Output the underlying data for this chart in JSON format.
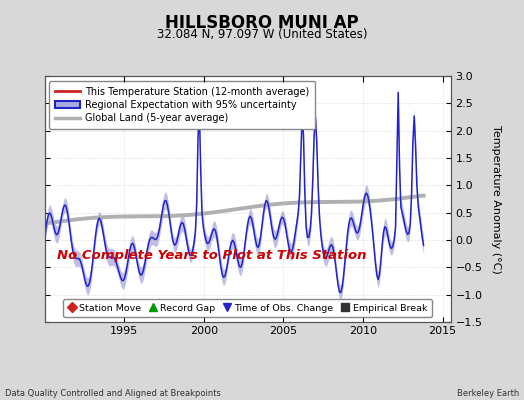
{
  "title": "HILLSBORO MUNI AP",
  "subtitle": "32.084 N, 97.097 W (United States)",
  "ylabel": "Temperature Anomaly (°C)",
  "xlabel_bottom_left": "Data Quality Controlled and Aligned at Breakpoints",
  "xlabel_bottom_right": "Berkeley Earth",
  "annotation": "No Complete Years to Plot at This Station",
  "ylim": [
    -1.5,
    3.0
  ],
  "xlim": [
    1990.0,
    2015.5
  ],
  "xticks": [
    1995,
    2000,
    2005,
    2010,
    2015
  ],
  "yticks": [
    -1.5,
    -1.0,
    -0.5,
    0.0,
    0.5,
    1.0,
    1.5,
    2.0,
    2.5,
    3.0
  ],
  "bg_color": "#d8d8d8",
  "plot_bg_color": "#ffffff",
  "regional_color": "#2222cc",
  "regional_fill_color": "#aaaadd",
  "global_color": "#b0b0b0",
  "station_color": "#cc2222",
  "annotation_color": "#cc0000",
  "legend1_items": [
    {
      "label": "This Temperature Station (12-month average)",
      "color": "#cc2222",
      "lw": 2.0
    },
    {
      "label": "Regional Expectation with 95% uncertainty",
      "color": "#2222cc",
      "fill": "#aaaadd"
    },
    {
      "label": "Global Land (5-year average)",
      "color": "#b0b0b0",
      "lw": 2.5
    }
  ],
  "legend2_items": [
    {
      "label": "Station Move",
      "marker": "D",
      "color": "#cc2222"
    },
    {
      "label": "Record Gap",
      "marker": "^",
      "color": "#009900"
    },
    {
      "label": "Time of Obs. Change",
      "marker": "v",
      "color": "#2222cc"
    },
    {
      "label": "Empirical Break",
      "marker": "s",
      "color": "#333333"
    }
  ]
}
